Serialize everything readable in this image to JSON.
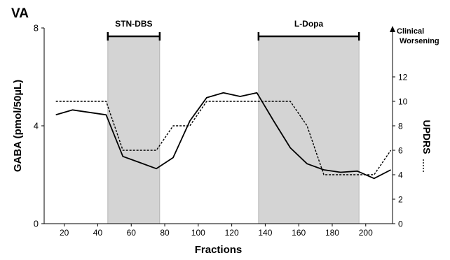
{
  "chart_data": {
    "type": "line",
    "panel_label": "VA",
    "xlabel": "Fractions",
    "ylabel_left": "GABA (pmol/50µL)",
    "ylabel_right": "UPDRS",
    "x_ticks": [
      "20",
      "40",
      "60",
      "80",
      "100",
      "120",
      "140",
      "160",
      "180",
      "200"
    ],
    "y_left_ticks": [
      "0",
      "4",
      "8"
    ],
    "y_right_ticks": [
      "0",
      "2",
      "4",
      "6",
      "8",
      "10",
      "12"
    ],
    "xlim": [
      8,
      216
    ],
    "ylim_left": [
      0,
      8
    ],
    "ylim_right": [
      0,
      16
    ],
    "clinical_worsening": [
      "Clinical",
      "Worsening"
    ],
    "shaded_regions": [
      {
        "label": "STN-DBS",
        "x_start": 46,
        "x_end": 77
      },
      {
        "label": "L-Dopa",
        "x_start": 136,
        "x_end": 196
      }
    ],
    "series": [
      {
        "axis": "left",
        "style": "solid",
        "x": [
          15,
          25,
          35,
          45,
          55,
          65,
          75,
          85,
          95,
          105,
          115,
          125,
          135,
          145,
          155,
          165,
          175,
          185,
          195,
          205,
          215
        ],
        "y": [
          4.45,
          4.65,
          4.55,
          4.45,
          2.75,
          2.5,
          2.25,
          2.7,
          4.2,
          5.15,
          5.35,
          5.2,
          5.35,
          4.2,
          3.1,
          2.45,
          2.2,
          2.1,
          2.15,
          1.85,
          2.2
        ]
      },
      {
        "axis": "right",
        "style": "dotted",
        "x": [
          15,
          25,
          35,
          45,
          55,
          65,
          75,
          85,
          95,
          105,
          115,
          125,
          135,
          145,
          155,
          165,
          175,
          185,
          195,
          205,
          215
        ],
        "y": [
          10,
          10,
          10,
          10,
          6,
          6,
          6,
          8,
          8,
          10,
          10,
          10,
          10,
          10,
          10,
          8,
          4,
          4,
          4,
          4,
          6
        ]
      }
    ]
  }
}
